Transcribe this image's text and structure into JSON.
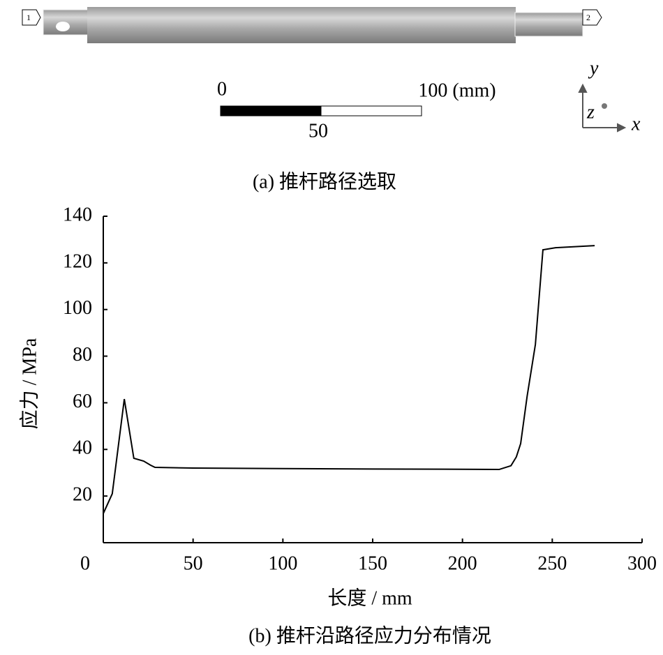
{
  "figure_a": {
    "caption": "(a)  推杆路径选取",
    "node_start": "1",
    "node_end": "2",
    "scale_start": "0",
    "scale_end": "100 (mm)",
    "scale_mid": "50",
    "axis_y": "y",
    "axis_z": "z",
    "axis_x": "x"
  },
  "chart_data": {
    "type": "line",
    "caption": "(b)  推杆沿路径应力分布情况",
    "x_label": "长度 / mm",
    "y_label": "应力 / MPa",
    "x": [
      0,
      5,
      11.7,
      17,
      22.5,
      26.4,
      28.8,
      50,
      100,
      150,
      200,
      220.4,
      227,
      230,
      232.4,
      236,
      240.6,
      244.8,
      251.8,
      273.6
    ],
    "values": [
      12.5,
      21,
      61.6,
      36.2,
      35,
      33.2,
      32.3,
      32,
      31.8,
      31.6,
      31.5,
      31.4,
      33,
      36.8,
      42.5,
      62.8,
      85,
      125.6,
      126.5,
      127.4
    ],
    "color": "#000000",
    "xlim": [
      0,
      300
    ],
    "xticks": [
      0,
      50,
      100,
      150,
      200,
      250,
      300
    ],
    "ylim": [
      0,
      140
    ],
    "yticks": [
      20,
      40,
      60,
      80,
      100,
      120,
      140
    ]
  }
}
